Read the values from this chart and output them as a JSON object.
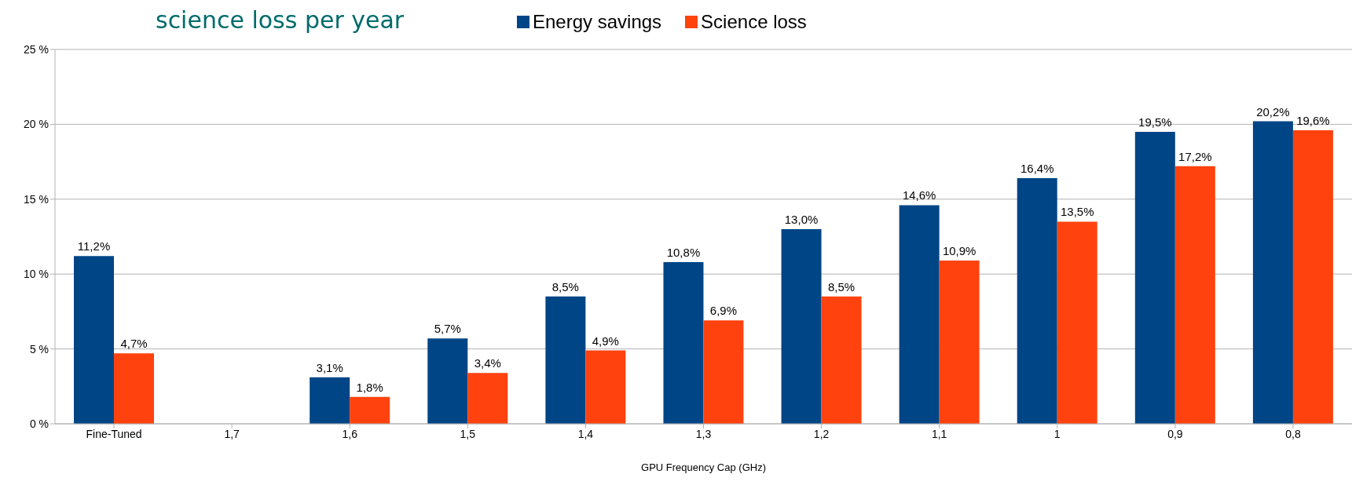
{
  "chart_data": {
    "type": "bar",
    "title": "science loss per year",
    "xlabel": "GPU Frequency Cap (GHz)",
    "categories": [
      "Fine-Tuned",
      "1,7",
      "1,6",
      "1,5",
      "1,4",
      "1,3",
      "1,2",
      "1,1",
      "1",
      "0,9",
      "0,8"
    ],
    "series": [
      {
        "name": "Energy savings",
        "color": "#004586",
        "values": [
          11.2,
          null,
          3.1,
          5.7,
          8.5,
          10.8,
          13.0,
          14.6,
          16.4,
          19.5,
          20.2
        ],
        "value_labels": [
          "11,2%",
          null,
          "3,1%",
          "5,7%",
          "8,5%",
          "10,8%",
          "13,0%",
          "14,6%",
          "16,4%",
          "19,5%",
          "20,2%"
        ]
      },
      {
        "name": "Science loss",
        "color": "#ff420e",
        "values": [
          4.7,
          null,
          1.8,
          3.4,
          4.9,
          6.9,
          8.5,
          10.9,
          13.5,
          17.2,
          19.6
        ],
        "value_labels": [
          "4,7%",
          null,
          "1,8%",
          "3,4%",
          "4,9%",
          "6,9%",
          "8,5%",
          "10,9%",
          "13,5%",
          "17,2%",
          "19,6%"
        ]
      }
    ],
    "ylim": [
      0,
      25
    ],
    "yticks": [
      {
        "value": 0,
        "label": "0 %"
      },
      {
        "value": 5,
        "label": "5 %"
      },
      {
        "value": 10,
        "label": "10 %"
      },
      {
        "value": 15,
        "label": "15 %"
      },
      {
        "value": 20,
        "label": "20 %"
      },
      {
        "value": 25,
        "label": "25 %"
      }
    ],
    "grid": "y",
    "legend": "top"
  }
}
